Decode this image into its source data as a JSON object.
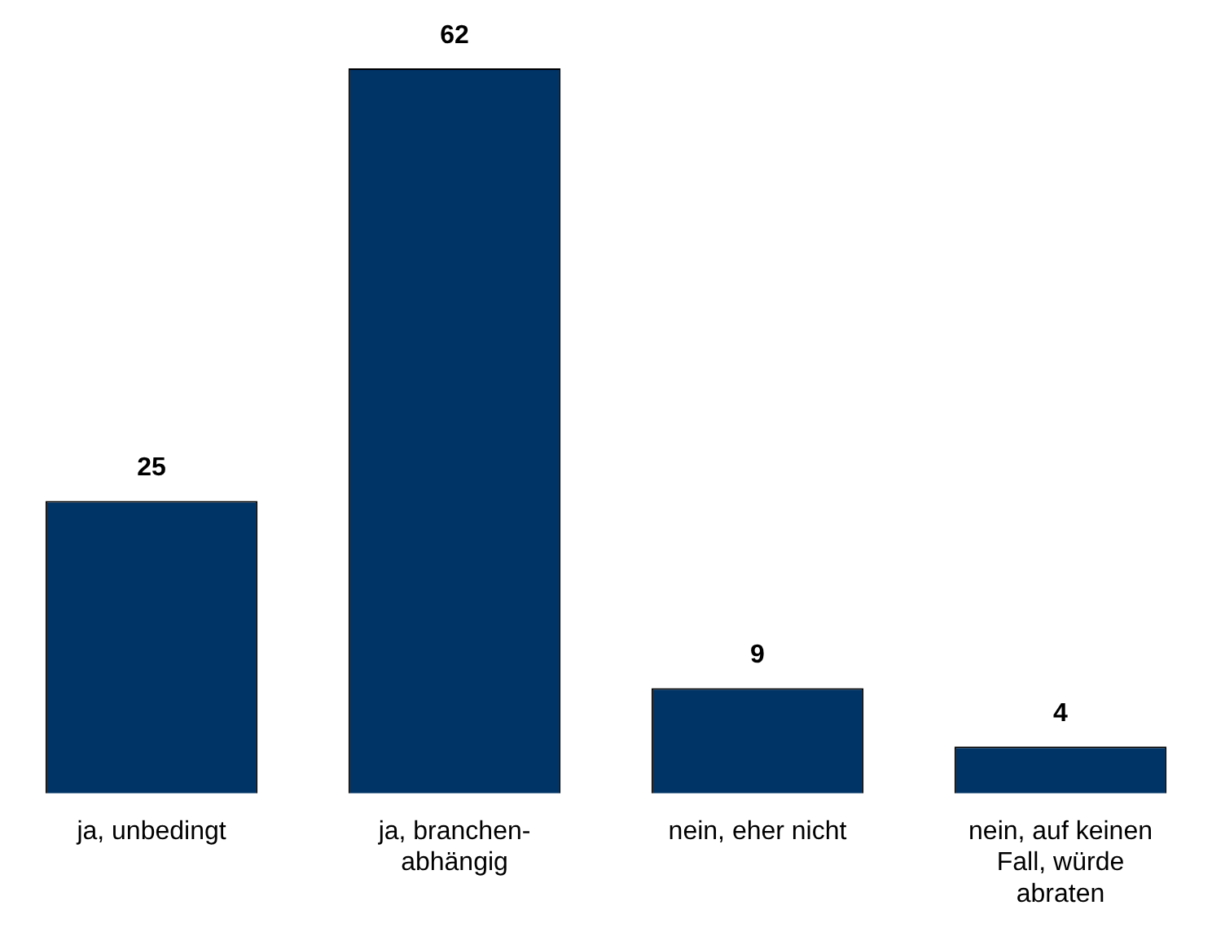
{
  "chart_data": {
    "type": "bar",
    "categories": [
      "ja, unbedingt",
      "ja, branchen-abhängig",
      "nein, eher nicht",
      "nein, auf keinen Fall, würde abraten"
    ],
    "values": [
      25,
      62,
      9,
      4
    ],
    "color": "#003366",
    "data_labels": true,
    "grid": false,
    "legend": false
  }
}
